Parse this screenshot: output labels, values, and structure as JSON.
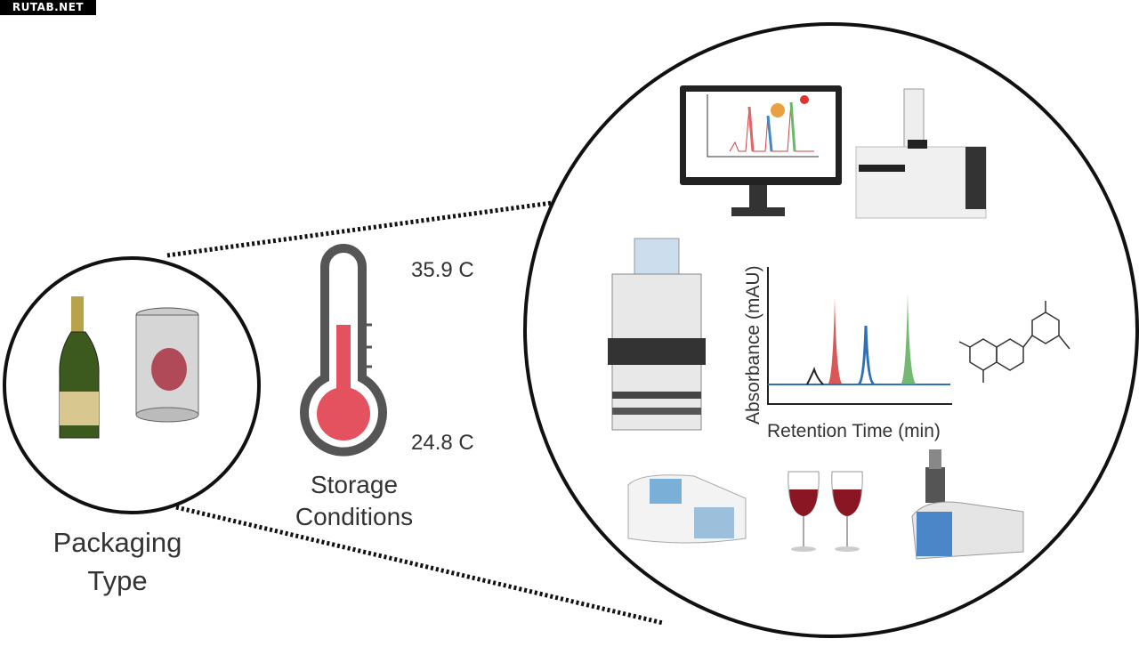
{
  "watermark": "RUTAB.NET",
  "packaging": {
    "label_line1": "Packaging",
    "label_line2": "Type"
  },
  "storage": {
    "label_line1": "Storage",
    "label_line2": "Conditions",
    "temp_high": "35.9 C",
    "temp_low": "24.8 C"
  },
  "chromatogram": {
    "ylabel": "Absorbance (mAU)",
    "xlabel": "Retention Time (min)"
  },
  "colors": {
    "red": "#d23a3a",
    "blue": "#2f6fb3",
    "green": "#5aad5a",
    "thermo": "#e5525f",
    "outline": "#111111"
  },
  "icons": [
    "champagne-bottle-icon",
    "can-icon",
    "thermometer-icon",
    "monitor-chromatogram-icon",
    "gc-instrument-icon",
    "hplc-instrument-icon",
    "molecule-icon",
    "spectrophotometer-icon",
    "wine-glasses-icon",
    "mass-spec-instrument-icon"
  ]
}
